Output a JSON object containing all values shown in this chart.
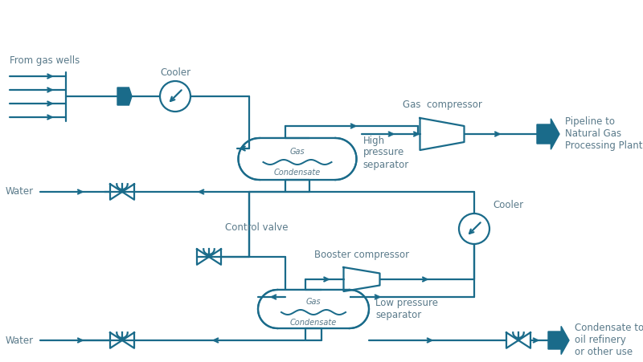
{
  "bg_color": "#ffffff",
  "line_color": "#1a6b8a",
  "fill_color": "#1a6b8a",
  "text_color": "#5a7a8a",
  "lw": 1.6,
  "figsize": [
    8.0,
    4.51
  ],
  "dpi": 100,
  "labels": {
    "from_gas_wells": "From gas wells",
    "cooler_top": "Cooler",
    "high_pressure_sep": "High\npressure\nseparator",
    "gas_compressor": "Gas  compressor",
    "pipeline": "Pipeline to\nNatural Gas\nProcessing Plant",
    "water_top": "Water",
    "control_valve": "Control valve",
    "cooler_bottom": "Cooler",
    "booster_compressor": "Booster compressor",
    "low_pressure_sep": "Low pressure\nseparator",
    "water_bottom": "Water",
    "condensate_to_oil": "Condensate to\noil refinery\nor other use",
    "gas_top": "Gas",
    "condensate_top": "Condensate",
    "gas_bottom": "Gas",
    "condensate_bottom": "Condensate"
  }
}
